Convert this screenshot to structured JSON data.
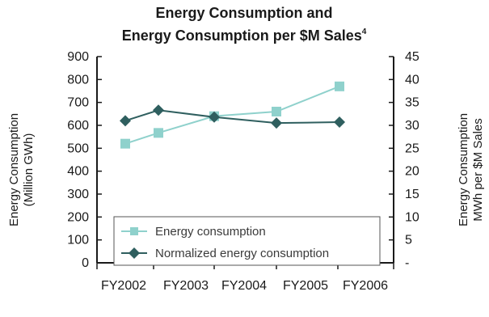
{
  "chart_data": {
    "type": "line",
    "title_line1": "Energy Consumption and",
    "title_line2": "Energy Consumption per $M Sales",
    "title_footnote": "4",
    "categories": [
      "FY2002",
      "FY2003",
      "FY2004",
      "FY2005",
      "FY2006"
    ],
    "y_left": {
      "title_line1": "Energy Consumption",
      "title_line2": "(Million GWh)",
      "ticks": [
        "900",
        "800",
        "700",
        "600",
        "500",
        "400",
        "300",
        "200",
        "100",
        "0"
      ],
      "range": [
        0,
        900
      ]
    },
    "y_right": {
      "title_line1": "Energy Consumption",
      "title_line2": "MWh per $M Sales",
      "ticks": [
        "45",
        "40",
        "35",
        "30",
        "25",
        "20",
        "15",
        "10",
        "5",
        "-"
      ],
      "range": [
        0,
        45
      ]
    },
    "series": [
      {
        "name": "Energy consumption",
        "axis": "left",
        "marker": "square",
        "color": "#8fd1cc",
        "values": [
          520,
          567,
          640,
          660,
          770
        ]
      },
      {
        "name": "Normalized energy consumption",
        "axis": "right",
        "marker": "diamond",
        "color": "#2f5f5f",
        "values": [
          31,
          33.3,
          31.8,
          30.5,
          30.7
        ]
      }
    ],
    "legend_position": "lower-center",
    "grid": false,
    "colors": {
      "axis": "#1a1a1a",
      "text": "#1a1a1a"
    }
  }
}
